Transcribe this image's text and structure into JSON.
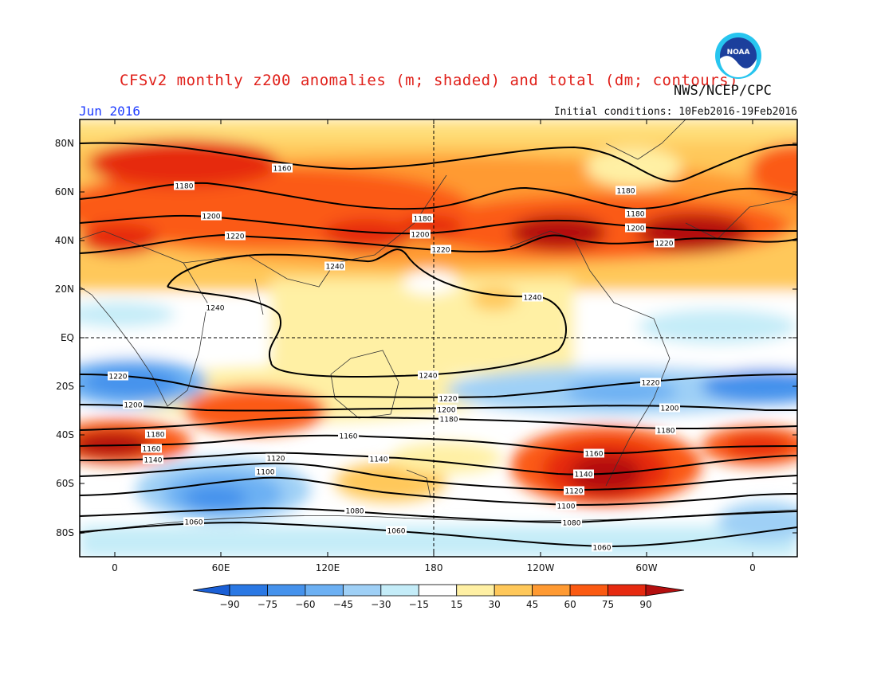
{
  "header": {
    "title": "CFSv2 monthly z200 anomalies (m; shaded) and total (dm; contours)",
    "agency": "NWS/NCEP/CPC",
    "month": "Jun 2016",
    "initial_conditions": "Initial conditions: 10Feb2016-19Feb2016",
    "logo_text": "NOAA"
  },
  "axes": {
    "lat_ticks": [
      "80N",
      "60N",
      "40N",
      "20N",
      "EQ",
      "20S",
      "40S",
      "60S",
      "80S"
    ],
    "lon_ticks": [
      "0",
      "60E",
      "120E",
      "180",
      "120W",
      "60W",
      "0"
    ]
  },
  "colorbar": {
    "labels": [
      "-90",
      "-75",
      "-60",
      "-45",
      "-30",
      "-15",
      "15",
      "30",
      "45",
      "60",
      "75",
      "90"
    ],
    "colors": [
      "#1a5fd6",
      "#2a78e4",
      "#4592ec",
      "#6cb0f3",
      "#9fd0f6",
      "#c4ecf8",
      "#ffffff",
      "#fff0a4",
      "#ffc85a",
      "#ff9a32",
      "#fb5a12",
      "#e62a10",
      "#b40f0f"
    ]
  },
  "contour_labels": [
    {
      "text": "1160"
    },
    {
      "text": "1180"
    },
    {
      "text": "1180"
    },
    {
      "text": "1180"
    },
    {
      "text": "1180"
    },
    {
      "text": "1200"
    },
    {
      "text": "1200"
    },
    {
      "text": "1200"
    },
    {
      "text": "1220"
    },
    {
      "text": "1220"
    },
    {
      "text": "1220"
    },
    {
      "text": "1240"
    },
    {
      "text": "1240"
    },
    {
      "text": "1240"
    },
    {
      "text": "1220"
    },
    {
      "text": "1240"
    },
    {
      "text": "1220"
    },
    {
      "text": "1220"
    },
    {
      "text": "1200"
    },
    {
      "text": "1200"
    },
    {
      "text": "1200"
    },
    {
      "text": "1180"
    },
    {
      "text": "1180"
    },
    {
      "text": "1180"
    },
    {
      "text": "1160"
    },
    {
      "text": "1160"
    },
    {
      "text": "1160"
    },
    {
      "text": "1140"
    },
    {
      "text": "1140"
    },
    {
      "text": "1140"
    },
    {
      "text": "1120"
    },
    {
      "text": "1120"
    },
    {
      "text": "1100"
    },
    {
      "text": "1100"
    },
    {
      "text": "1080"
    },
    {
      "text": "1080"
    },
    {
      "text": "1060"
    },
    {
      "text": "1060"
    },
    {
      "text": "1060"
    }
  ]
}
